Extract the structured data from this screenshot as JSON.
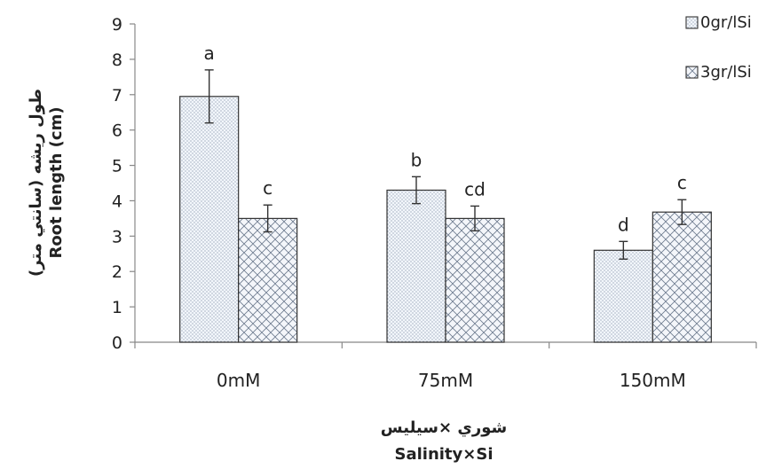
{
  "chart_data": {
    "type": "bar",
    "categories": [
      "0mM",
      "75mM",
      "150mM"
    ],
    "series": [
      {
        "name": "0gr/lSi",
        "values": [
          6.95,
          4.3,
          2.6
        ],
        "errors": [
          0.75,
          0.38,
          0.25
        ],
        "letters": [
          "a",
          "b",
          "d"
        ],
        "pattern": "dots"
      },
      {
        "name": "3gr/lSi",
        "values": [
          3.5,
          3.5,
          3.68
        ],
        "errors": [
          0.38,
          0.35,
          0.35
        ],
        "letters": [
          "c",
          "cd",
          "c"
        ],
        "pattern": "crosshatch"
      }
    ],
    "ylim": [
      0,
      9
    ],
    "yticks": [
      "0",
      "1",
      "2",
      "3",
      "4",
      "5",
      "6",
      "7",
      "8",
      "9"
    ],
    "ylabel_line1": "طول ريشه (سانتي متر)",
    "ylabel_line2": "Root length (cm)",
    "xlabel_line1": "شوري ×سيليس",
    "xlabel_line2": "Salinity×Si",
    "legend_position": "top-right",
    "grid": false
  }
}
